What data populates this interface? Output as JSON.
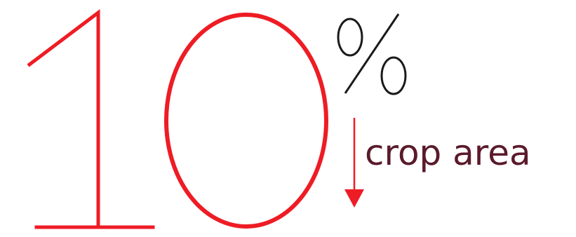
{
  "headline": {
    "digit_one": "1",
    "digit_zero": "0",
    "percent_sign": "%",
    "caption": "crop area",
    "direction": "decrease"
  },
  "colors": {
    "accent_red": "#ee1c24",
    "percent_black": "#1a1a1a",
    "caption_maroon": "#5a1a2a",
    "background": "#ffffff"
  }
}
